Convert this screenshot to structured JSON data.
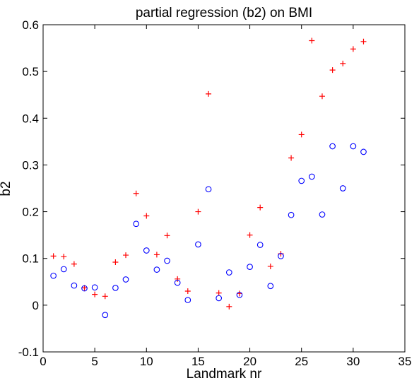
{
  "chart_data": {
    "type": "scatter",
    "title": "partial regression (b2) on BMI",
    "xlabel": "Landmark nr",
    "ylabel": "b2",
    "xlim": [
      0,
      35
    ],
    "ylim": [
      -0.1,
      0.6
    ],
    "xticks": [
      0,
      5,
      10,
      15,
      20,
      25,
      30,
      35
    ],
    "yticks": [
      -0.1,
      0,
      0.1,
      0.2,
      0.3,
      0.4,
      0.5,
      0.6
    ],
    "xtick_labels": [
      "0",
      "5",
      "10",
      "15",
      "20",
      "25",
      "30",
      "35"
    ],
    "ytick_labels": [
      "-0.1",
      "0",
      "0.1",
      "0.2",
      "0.3",
      "0.4",
      "0.5",
      "0.6"
    ],
    "grid": false,
    "legend": "none",
    "x": [
      1,
      2,
      3,
      4,
      5,
      6,
      7,
      8,
      9,
      10,
      11,
      12,
      13,
      14,
      15,
      16,
      17,
      18,
      19,
      20,
      21,
      22,
      23,
      24,
      25,
      26,
      27,
      28,
      29,
      30,
      31
    ],
    "series": [
      {
        "marker": "plus",
        "color": "#ff0000",
        "values": [
          0.105,
          0.104,
          0.088,
          0.037,
          0.023,
          0.019,
          0.092,
          0.107,
          0.239,
          0.191,
          0.108,
          0.149,
          0.056,
          0.03,
          0.2,
          0.452,
          0.026,
          -0.003,
          0.025,
          0.15,
          0.209,
          0.083,
          0.11,
          0.315,
          0.365,
          0.566,
          0.447,
          0.503,
          0.517,
          0.548,
          0.564
        ]
      },
      {
        "marker": "circle",
        "color": "#0000ff",
        "values": [
          0.063,
          0.077,
          0.042,
          0.036,
          0.038,
          -0.021,
          0.037,
          0.055,
          0.174,
          0.117,
          0.076,
          0.095,
          0.048,
          0.011,
          0.13,
          0.248,
          0.015,
          0.07,
          0.022,
          0.082,
          0.129,
          0.041,
          0.105,
          0.193,
          0.266,
          0.275,
          0.194,
          0.34,
          0.25,
          0.34,
          0.328
        ]
      }
    ]
  }
}
